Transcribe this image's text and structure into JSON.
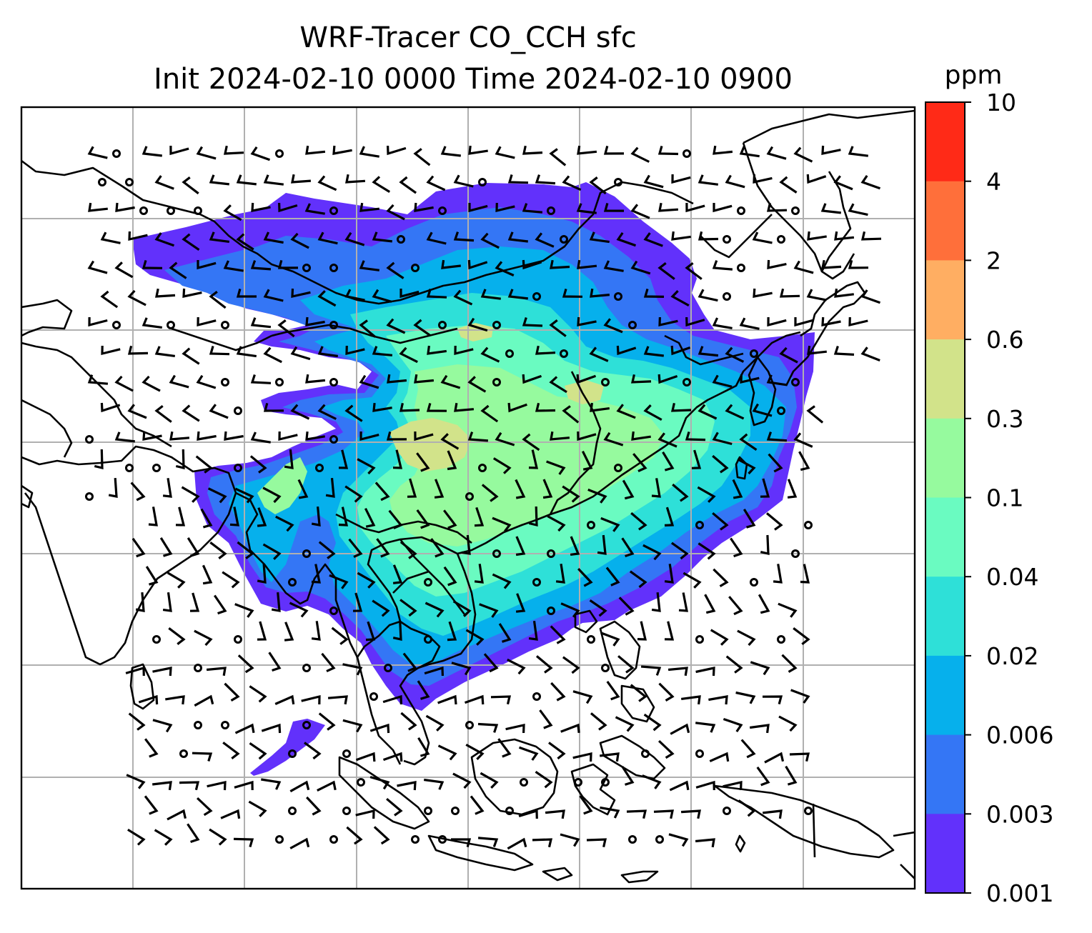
{
  "title": {
    "line1": "WRF-Tracer CO_CCH sfc",
    "line2": "Init 2024-02-10 0000 Time 2024-02-10 0900"
  },
  "colorbar": {
    "unit": "ppm",
    "ticks": [
      "10",
      "4",
      "2",
      "0.6",
      "0.3",
      "0.1",
      "0.04",
      "0.02",
      "0.006",
      "0.003",
      "0.001"
    ],
    "colors_top_to_bottom": [
      "#ff2a17",
      "#ff6f3a",
      "#ffae62",
      "#d2e38a",
      "#96fa9e",
      "#6afbc1",
      "#2ee0d8",
      "#06b0ec",
      "#3476f5",
      "#6231fb"
    ]
  },
  "map": {
    "field": "CO_CCH surface concentration",
    "overlays": [
      "coastlines",
      "country borders",
      "lat-lon gridlines",
      "wind barbs"
    ],
    "colors": {
      "coastline": "#000000",
      "gridline": "#b0b0b0"
    }
  }
}
